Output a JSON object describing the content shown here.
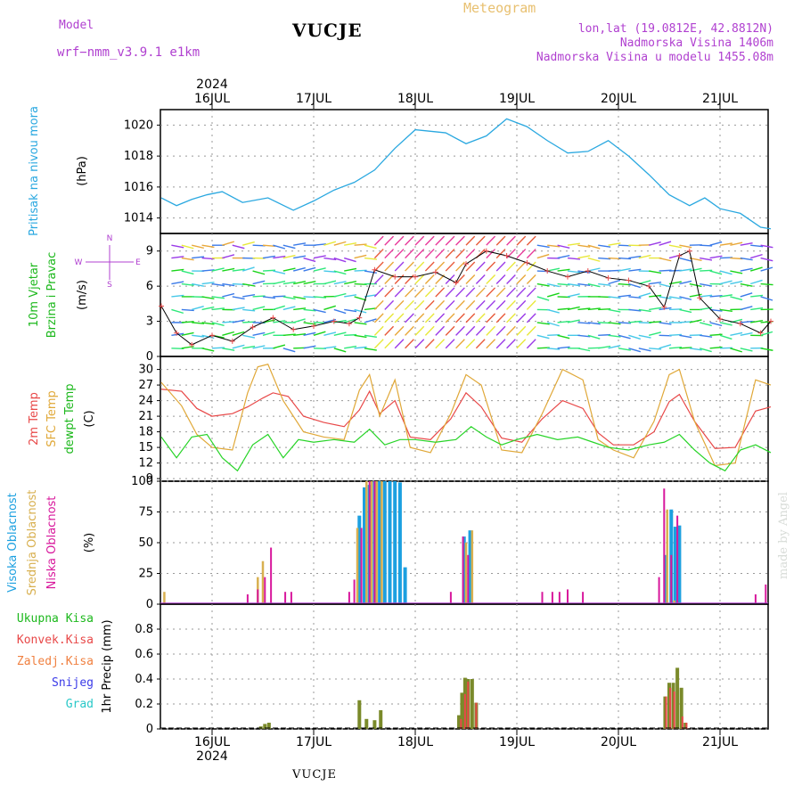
{
  "header": {
    "model_label": "Model",
    "model_value": "wrf−nmm_v3.9.1  e1km",
    "title": "VUCJE",
    "meteogram_label": "Meteogram",
    "coords": "lon,lat (19.0812E, 42.8812N)",
    "altitude": "Nadmorska Visina 1406m",
    "model_altitude": "Nadmorska Visina u modelu 1455.08m",
    "footer": "VUCJE",
    "signature": "made by Angel"
  },
  "colors": {
    "pressure": "#2aa8e0",
    "t2m": "#e84848",
    "sfc": "#e0a838",
    "dewpt": "#28d428",
    "visoka": "#1ca0e0",
    "srednja": "#d8b050",
    "niska": "#d8189c",
    "precip_total": "#7a8a2a",
    "precip_conv": "#e84848",
    "accent_label": "#b040d0"
  },
  "time_axis": {
    "year": "2024",
    "days": [
      "16JUL",
      "17JUL",
      "18JUL",
      "19JUL",
      "20JUL",
      "21JUL"
    ]
  },
  "panel_labels": {
    "pressure": [
      "Pritisak na nivou mora"
    ],
    "pressure_unit": "(hPa)",
    "wind": [
      "10m Vjetar",
      "Brzina i Pravac"
    ],
    "wind_unit": "(m/s)",
    "compass": {
      "n": "N",
      "s": "S",
      "w": "W",
      "e": "E"
    },
    "temp": [
      "2m Temp",
      "SFC Temp",
      "dewpt Temp"
    ],
    "temp_unit": "(C)",
    "cloud": [
      "Visoka Oblacnost",
      "Srednja Oblacnost",
      "Niska Oblacnost"
    ],
    "cloud_unit": "(%)",
    "precip": [
      "Ukupna Kisa",
      "Konvek.Kisa",
      "Zaledj.Kisa",
      "Snijeg",
      "Grad"
    ],
    "precip_unit": "1hr Precip (mm)"
  },
  "chart_data": [
    {
      "type": "line",
      "panel": "pressure",
      "ylabel": "(hPa)",
      "ylim": [
        1013,
        1021
      ],
      "yticks": [
        1014,
        1016,
        1018,
        1020
      ],
      "grid": true,
      "series": [
        {
          "name": "Pritisak na nivou mora",
          "x": [
            -0.5,
            -0.35,
            -0.2,
            -0.05,
            0.1,
            0.3,
            0.55,
            0.8,
            1.0,
            1.2,
            1.4,
            1.6,
            1.8,
            2.0,
            2.15,
            2.3,
            2.5,
            2.7,
            2.9,
            3.1,
            3.3,
            3.5,
            3.7,
            3.9,
            4.1,
            4.3,
            4.5,
            4.7,
            4.85,
            5.0,
            5.2,
            5.4,
            5.5
          ],
          "y": [
            1015.3,
            1014.8,
            1015.2,
            1015.5,
            1015.7,
            1015.0,
            1015.3,
            1014.5,
            1015.1,
            1015.8,
            1016.3,
            1017.1,
            1018.5,
            1019.7,
            1019.6,
            1019.5,
            1018.8,
            1019.3,
            1020.4,
            1019.9,
            1019.0,
            1018.2,
            1018.3,
            1019.0,
            1018.0,
            1016.8,
            1015.5,
            1014.8,
            1015.3,
            1014.6,
            1014.3,
            1013.4,
            1013.3
          ]
        }
      ]
    },
    {
      "type": "line",
      "panel": "wind",
      "ylabel": "(m/s)",
      "ylim": [
        0,
        10.5
      ],
      "yticks": [
        0,
        3,
        6,
        9
      ],
      "grid": true,
      "series": [
        {
          "name": "Brzina",
          "x": [
            -0.5,
            -0.35,
            -0.2,
            0.0,
            0.2,
            0.4,
            0.6,
            0.8,
            1.0,
            1.2,
            1.35,
            1.45,
            1.6,
            1.8,
            2.0,
            2.2,
            2.4,
            2.5,
            2.7,
            2.9,
            3.1,
            3.3,
            3.5,
            3.7,
            3.9,
            4.1,
            4.3,
            4.45,
            4.6,
            4.7,
            4.8,
            5.0,
            5.2,
            5.4,
            5.5
          ],
          "y": [
            4.3,
            2.0,
            1.0,
            1.8,
            1.3,
            2.5,
            3.3,
            2.3,
            2.6,
            3.0,
            2.8,
            3.3,
            7.4,
            6.8,
            6.8,
            7.2,
            6.3,
            7.9,
            9.0,
            8.6,
            8.0,
            7.3,
            6.8,
            7.3,
            6.7,
            6.5,
            6.0,
            4.2,
            8.6,
            9.0,
            5.0,
            3.2,
            2.8,
            2.0,
            3.0
          ]
        }
      ]
    },
    {
      "type": "line",
      "panel": "temperature",
      "ylabel": "(C)",
      "ylim": [
        8.5,
        32.5
      ],
      "yticks": [
        9,
        12,
        15,
        18,
        21,
        24,
        27,
        30
      ],
      "grid": true,
      "series": [
        {
          "name": "2m Temp",
          "x": [
            -0.5,
            -0.3,
            -0.15,
            0.0,
            0.2,
            0.35,
            0.5,
            0.6,
            0.75,
            0.9,
            1.1,
            1.3,
            1.45,
            1.55,
            1.65,
            1.8,
            1.95,
            2.15,
            2.35,
            2.5,
            2.65,
            2.85,
            3.05,
            3.25,
            3.45,
            3.65,
            3.8,
            3.95,
            4.15,
            4.35,
            4.5,
            4.6,
            4.75,
            4.95,
            5.15,
            5.35,
            5.5
          ],
          "y": [
            26.2,
            25.8,
            22.5,
            21.0,
            21.5,
            22.8,
            24.5,
            25.5,
            24.8,
            21.0,
            19.8,
            19.0,
            22.2,
            25.8,
            21.5,
            24.0,
            17.0,
            16.5,
            20.5,
            25.5,
            22.8,
            16.8,
            16.0,
            20.5,
            24.0,
            22.5,
            17.8,
            15.5,
            15.5,
            18.0,
            23.8,
            25.2,
            20.0,
            14.8,
            15.0,
            22.0,
            22.8
          ]
        },
        {
          "name": "SFC Temp",
          "x": [
            -0.5,
            -0.3,
            -0.15,
            0.0,
            0.2,
            0.35,
            0.45,
            0.55,
            0.7,
            0.9,
            1.1,
            1.3,
            1.45,
            1.55,
            1.65,
            1.8,
            1.95,
            2.15,
            2.35,
            2.5,
            2.65,
            2.85,
            3.05,
            3.25,
            3.45,
            3.65,
            3.8,
            3.95,
            4.15,
            4.35,
            4.5,
            4.6,
            4.75,
            4.95,
            5.15,
            5.35,
            5.5
          ],
          "y": [
            27.5,
            23.0,
            17.5,
            15.0,
            14.5,
            25.5,
            30.5,
            31.0,
            24.0,
            18.0,
            17.0,
            16.5,
            26.0,
            29.0,
            21.0,
            28.0,
            15.0,
            14.0,
            21.5,
            29.0,
            27.0,
            14.5,
            14.0,
            21.5,
            30.0,
            28.0,
            16.5,
            14.5,
            13.0,
            20.0,
            29.0,
            30.0,
            20.0,
            11.5,
            12.0,
            28.0,
            27.0
          ]
        },
        {
          "name": "dewpt Temp",
          "x": [
            -0.5,
            -0.35,
            -0.2,
            -0.05,
            0.1,
            0.25,
            0.4,
            0.55,
            0.7,
            0.85,
            1.0,
            1.2,
            1.4,
            1.55,
            1.7,
            1.85,
            2.0,
            2.2,
            2.4,
            2.55,
            2.7,
            2.85,
            3.0,
            3.2,
            3.4,
            3.6,
            3.75,
            3.9,
            4.1,
            4.3,
            4.45,
            4.6,
            4.75,
            4.9,
            5.05,
            5.2,
            5.35,
            5.5
          ],
          "y": [
            17.0,
            13.0,
            17.0,
            17.5,
            13.0,
            10.5,
            15.5,
            17.5,
            13.0,
            16.5,
            16.0,
            16.5,
            16.0,
            18.5,
            15.5,
            16.5,
            16.5,
            16.0,
            16.5,
            19.0,
            17.0,
            15.5,
            16.5,
            17.5,
            16.5,
            17.0,
            16.0,
            15.0,
            14.5,
            15.5,
            16.0,
            17.5,
            14.5,
            12.0,
            10.5,
            14.5,
            15.5,
            14.0
          ]
        }
      ]
    },
    {
      "type": "bar",
      "panel": "cloud",
      "ylabel": "(%)",
      "ylim": [
        0,
        100
      ],
      "yticks": [
        0,
        25,
        50,
        75,
        100
      ],
      "grid": true,
      "series": [
        {
          "name": "Visoka Oblacnost",
          "x": [
            1.45,
            1.5,
            1.55,
            1.6,
            1.65,
            1.7,
            1.75,
            1.8,
            1.85,
            1.9,
            2.48,
            2.54,
            4.46,
            4.52,
            4.56,
            4.6
          ],
          "y": [
            72,
            95,
            97,
            100,
            100,
            100,
            100,
            100,
            99,
            30,
            55,
            60,
            40,
            77,
            63,
            64
          ]
        },
        {
          "name": "Srednja Oblacnost",
          "x": [
            -0.47,
            0.45,
            0.5,
            1.43,
            1.52,
            1.57,
            1.62,
            1.67,
            2.5,
            2.56,
            4.48,
            4.55
          ],
          "y": [
            10,
            22,
            35,
            62,
            100,
            100,
            100,
            100,
            50,
            60,
            77,
            3
          ]
        },
        {
          "name": "Niska Oblacnost",
          "x": [
            0.35,
            0.45,
            0.52,
            0.58,
            0.72,
            0.78,
            1.35,
            1.4,
            1.47,
            1.55,
            1.6,
            2.35,
            2.47,
            2.52,
            3.25,
            3.35,
            3.42,
            3.5,
            3.65,
            4.4,
            4.45,
            4.52,
            4.58,
            5.35,
            5.45
          ],
          "y": [
            8,
            12,
            22,
            46,
            10,
            10,
            10,
            20,
            62,
            100,
            100,
            10,
            55,
            40,
            10,
            10,
            10,
            12,
            10,
            22,
            94,
            40,
            72,
            8,
            16
          ]
        }
      ]
    },
    {
      "type": "bar",
      "panel": "precip",
      "ylabel": "1hr Precip (mm)",
      "ylim": [
        0,
        1.0
      ],
      "yticks": [
        0,
        0.2,
        0.4,
        0.6,
        0.8
      ],
      "grid": true,
      "series": [
        {
          "name": "Ukupna Kisa",
          "x": [
            0.48,
            0.52,
            0.56,
            1.45,
            1.52,
            1.6,
            1.66,
            2.43,
            2.46,
            2.49,
            2.52,
            2.56,
            2.6,
            4.46,
            4.5,
            4.54,
            4.58,
            4.62,
            4.66
          ],
          "y": [
            0.02,
            0.04,
            0.05,
            0.23,
            0.08,
            0.07,
            0.15,
            0.11,
            0.29,
            0.41,
            0.4,
            0.4,
            0.21,
            0.26,
            0.37,
            0.37,
            0.49,
            0.33,
            0.05
          ]
        },
        {
          "name": "Konvek.Kisa",
          "x": [
            2.45,
            2.49,
            2.52,
            2.6,
            4.47,
            4.51,
            4.55,
            4.63,
            4.67
          ],
          "y": [
            0.08,
            0.28,
            0.38,
            0.21,
            0.26,
            0.33,
            0.3,
            0.1,
            0.05
          ]
        }
      ]
    }
  ]
}
